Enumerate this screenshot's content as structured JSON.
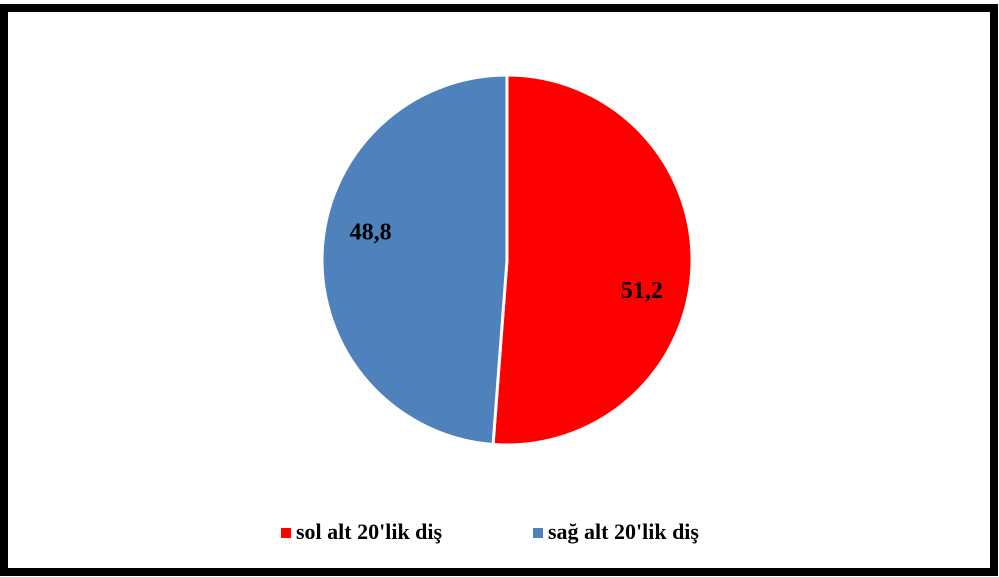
{
  "chart_data": {
    "type": "pie",
    "categories": [
      "sol alt 20'lik diş",
      "sağ alt 20'lik diş"
    ],
    "values": [
      51.2,
      48.8
    ],
    "value_labels": [
      "51,2",
      "48,8"
    ],
    "colors": [
      "#ff0000",
      "#4f81bd"
    ],
    "legend": "bottom"
  }
}
